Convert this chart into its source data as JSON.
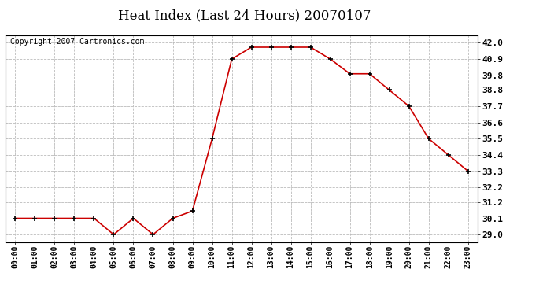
{
  "title": "Heat Index (Last 24 Hours) 20070107",
  "copyright": "Copyright 2007 Cartronics.com",
  "x_labels": [
    "00:00",
    "01:00",
    "02:00",
    "03:00",
    "04:00",
    "05:00",
    "06:00",
    "07:00",
    "08:00",
    "09:00",
    "10:00",
    "11:00",
    "12:00",
    "13:00",
    "14:00",
    "15:00",
    "16:00",
    "17:00",
    "18:00",
    "19:00",
    "20:00",
    "21:00",
    "22:00",
    "23:00"
  ],
  "y_values": [
    30.1,
    30.1,
    30.1,
    30.1,
    30.1,
    29.0,
    30.1,
    29.0,
    30.1,
    30.6,
    35.5,
    40.9,
    41.7,
    41.7,
    41.7,
    41.7,
    40.9,
    39.9,
    39.9,
    38.8,
    37.7,
    35.5,
    34.4,
    33.3
  ],
  "line_color": "#cc0000",
  "marker_color": "#000000",
  "bg_color": "#ffffff",
  "grid_color": "#bbbbbb",
  "title_fontsize": 12,
  "ylim": [
    28.5,
    42.5
  ],
  "y_ticks": [
    29.0,
    30.1,
    31.2,
    32.2,
    33.3,
    34.4,
    35.5,
    36.6,
    37.7,
    38.8,
    39.8,
    40.9,
    42.0
  ],
  "copyright_fontsize": 7,
  "tick_fontsize": 8,
  "x_tick_fontsize": 7
}
